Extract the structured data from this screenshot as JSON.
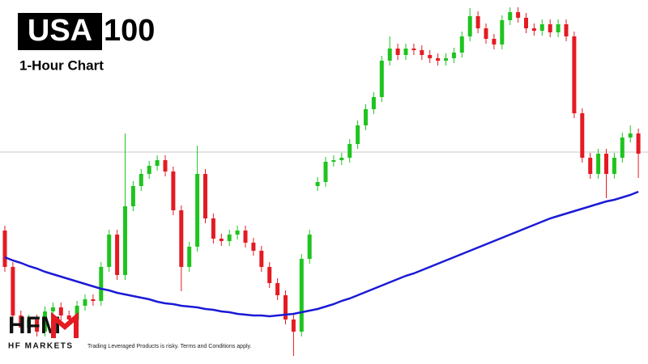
{
  "chart_data": {
    "type": "candlestick",
    "title_box": "USA",
    "title": "100",
    "subtitle": "1-Hour Chart",
    "logo": "HFM",
    "logo_caption": "HF MARKETS",
    "disclaimer": "Trading Leveraged Products is risky. Terms and Conditions apply.",
    "ylim": [
      0,
      450
    ],
    "up_color": "#1fc41f",
    "down_color": "#e41b23",
    "open": [
      165,
      120,
      60,
      45,
      55,
      40,
      65,
      70,
      60,
      55,
      72,
      80,
      78,
      120,
      160,
      110,
      195,
      220,
      235,
      245,
      252,
      238,
      190,
      120,
      145,
      235,
      180,
      155,
      152,
      160,
      165,
      150,
      140,
      120,
      100,
      85,
      55,
      40,
      130,
      220,
      225,
      250,
      252,
      255,
      272,
      295,
      315,
      330,
      375,
      390,
      382,
      390,
      388,
      382,
      378,
      375,
      378,
      385,
      405,
      430,
      415,
      402,
      395,
      425,
      435,
      428,
      415,
      412,
      420,
      410,
      420,
      405,
      310,
      255,
      235,
      260,
      235,
      255,
      280,
      285
    ],
    "high": [
      171,
      126,
      66,
      61,
      61,
      71,
      76,
      76,
      66,
      78,
      86,
      86,
      126,
      166,
      166,
      285,
      226,
      241,
      251,
      258,
      258,
      244,
      196,
      151,
      270,
      241,
      186,
      161,
      166,
      171,
      171,
      156,
      146,
      126,
      106,
      91,
      61,
      136,
      166,
      231,
      256,
      258,
      261,
      278,
      301,
      321,
      336,
      381,
      405,
      396,
      396,
      396,
      394,
      388,
      384,
      384,
      391,
      411,
      440,
      436,
      421,
      408,
      431,
      441,
      441,
      434,
      421,
      426,
      426,
      426,
      426,
      411,
      316,
      261,
      266,
      266,
      261,
      286,
      295,
      291
    ],
    "low": [
      114,
      54,
      39,
      39,
      34,
      34,
      59,
      54,
      49,
      49,
      66,
      72,
      72,
      114,
      104,
      104,
      189,
      214,
      229,
      239,
      232,
      184,
      90,
      114,
      139,
      174,
      149,
      146,
      146,
      154,
      144,
      134,
      114,
      94,
      79,
      49,
      10,
      34,
      124,
      214,
      219,
      244,
      246,
      249,
      266,
      289,
      309,
      324,
      369,
      376,
      376,
      382,
      376,
      372,
      369,
      369,
      372,
      379,
      399,
      409,
      396,
      389,
      389,
      419,
      422,
      409,
      406,
      406,
      404,
      404,
      399,
      304,
      249,
      229,
      229,
      205,
      229,
      249,
      274,
      230
    ],
    "close": [
      120,
      60,
      45,
      55,
      40,
      65,
      70,
      60,
      55,
      72,
      80,
      78,
      120,
      160,
      110,
      195,
      220,
      235,
      245,
      252,
      238,
      190,
      120,
      145,
      235,
      180,
      155,
      152,
      160,
      165,
      150,
      140,
      120,
      100,
      85,
      55,
      40,
      130,
      160,
      225,
      250,
      252,
      255,
      272,
      295,
      315,
      330,
      375,
      390,
      382,
      390,
      388,
      382,
      378,
      375,
      378,
      385,
      405,
      430,
      415,
      402,
      395,
      425,
      435,
      428,
      415,
      412,
      420,
      410,
      420,
      405,
      310,
      255,
      235,
      260,
      235,
      255,
      280,
      285,
      260
    ],
    "moving_average": {
      "color": "#1a1ad6",
      "values": [
        132,
        128,
        125,
        121,
        118,
        114,
        111,
        108,
        105,
        102,
        99,
        96,
        93,
        91,
        88,
        86,
        84,
        82,
        80,
        77,
        75,
        74,
        72,
        71,
        70,
        68,
        67,
        65,
        64,
        62,
        61,
        60,
        60,
        59,
        60,
        61,
        62,
        64,
        66,
        68,
        71,
        74,
        78,
        81,
        85,
        89,
        93,
        97,
        101,
        105,
        109,
        112,
        116,
        120,
        124,
        128,
        132,
        136,
        140,
        144,
        148,
        152,
        156,
        160,
        164,
        168,
        172,
        176,
        180,
        183,
        186,
        189,
        192,
        195,
        198,
        201,
        203,
        206,
        209,
        213
      ]
    },
    "price_line": 262,
    "price_line_color": "#c8c8c8"
  }
}
